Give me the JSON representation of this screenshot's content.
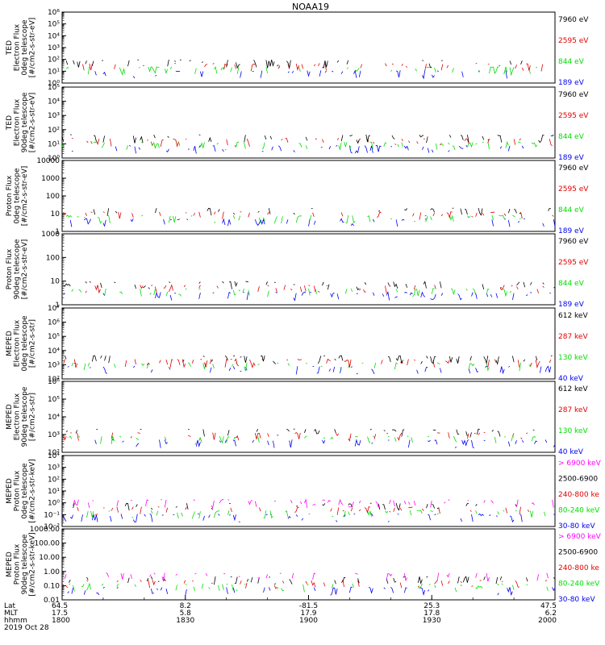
{
  "title": "NOAA19",
  "colors": {
    "black": "#000000",
    "red": "#e00000",
    "green": "#00dd00",
    "blue": "#0000ee",
    "magenta": "#ff00ff"
  },
  "chart_data": [
    {
      "type": "line",
      "ylabel": [
        "TED",
        "Electron Flux",
        "0deg telescope",
        "[#/cm2-s-str-eV]"
      ],
      "log": true,
      "yticks": [
        "10⁰",
        "10¹",
        "10²",
        "10³",
        "10⁴",
        "10⁵",
        "10⁶"
      ],
      "legend": [
        {
          "label": "7960 eV",
          "color": "black"
        },
        {
          "label": "2595 eV",
          "color": "red"
        },
        {
          "label": "844 eV",
          "color": "green"
        },
        {
          "label": "189 eV",
          "color": "blue"
        }
      ]
    },
    {
      "type": "line",
      "ylabel": [
        "TED",
        "Electron Flux",
        "90deg telescope",
        "[#/cm2-s-str-eV]"
      ],
      "log": true,
      "yticks": [
        "10⁰",
        "10¹",
        "10²",
        "10³",
        "10⁴",
        "10⁵"
      ],
      "legend": [
        {
          "label": "7960 eV",
          "color": "black"
        },
        {
          "label": "2595 eV",
          "color": "red"
        },
        {
          "label": "844 eV",
          "color": "green"
        },
        {
          "label": "189 eV",
          "color": "blue"
        }
      ]
    },
    {
      "type": "line",
      "ylabel": [
        "Proton Flux",
        "0deg telescope",
        "[#/cm2-s-str-eV]"
      ],
      "log": true,
      "yticks": [
        "1",
        "10",
        "100",
        "1000",
        "10000"
      ],
      "legend": [
        {
          "label": "7960 eV",
          "color": "black"
        },
        {
          "label": "2595 eV",
          "color": "red"
        },
        {
          "label": "844 eV",
          "color": "green"
        },
        {
          "label": "189 eV",
          "color": "blue"
        }
      ]
    },
    {
      "type": "line",
      "ylabel": [
        "Proton Flux",
        "90deg telescope",
        "[#/cm2-s-str-eV]"
      ],
      "log": true,
      "yticks": [
        "1",
        "10",
        "100",
        "1000"
      ],
      "legend": [
        {
          "label": "7960 eV",
          "color": "black"
        },
        {
          "label": "2595 eV",
          "color": "red"
        },
        {
          "label": "844 eV",
          "color": "green"
        },
        {
          "label": "189 eV",
          "color": "blue"
        }
      ]
    },
    {
      "type": "line",
      "ylabel": [
        "MEPED",
        "Electron Flux",
        "0deg telescope",
        "[#/cm2-s-str]"
      ],
      "log": true,
      "yticks": [
        "10²",
        "10³",
        "10⁴",
        "10⁵",
        "10⁶",
        "10⁷"
      ],
      "legend": [
        {
          "label": "612 keV",
          "color": "black"
        },
        {
          "label": "287 keV",
          "color": "red"
        },
        {
          "label": "130 keV",
          "color": "green"
        },
        {
          "label": "40 keV",
          "color": "blue"
        }
      ]
    },
    {
      "type": "line",
      "ylabel": [
        "MEPED",
        "Electron Flux",
        "90deg telescope",
        "[#/cm2-s-str]"
      ],
      "log": true,
      "yticks": [
        "10²",
        "10³",
        "10⁴",
        "10⁵",
        "10⁶"
      ],
      "legend": [
        {
          "label": "612 keV",
          "color": "black"
        },
        {
          "label": "287 keV",
          "color": "red"
        },
        {
          "label": "130 keV",
          "color": "green"
        },
        {
          "label": "40 keV",
          "color": "blue"
        }
      ]
    },
    {
      "type": "line",
      "ylabel": [
        "MEPED",
        "Proton Flux",
        "0deg telescope",
        "[#/cm2-s-str-keV]"
      ],
      "log": true,
      "yticks": [
        "10⁻²",
        "10⁻¹",
        "10⁰",
        "10¹",
        "10²",
        "10³",
        "10⁴"
      ],
      "legend": [
        {
          "label": "> 6900 keV",
          "color": "magenta"
        },
        {
          "label": "2500-6900",
          "color": "black"
        },
        {
          "label": "240-800 ke",
          "color": "red"
        },
        {
          "label": "80-240 keV",
          "color": "green"
        },
        {
          "label": "30-80 keV",
          "color": "blue"
        }
      ]
    },
    {
      "type": "line",
      "ylabel": [
        "MEPED",
        "Proton Flux",
        "90deg telescope",
        "[#/cm2-s-str-keV]"
      ],
      "log": true,
      "yticks": [
        "0.01",
        "0.10",
        "1.00",
        "10.00",
        "100.00",
        "1000.00"
      ],
      "legend": [
        {
          "label": "> 6900 keV",
          "color": "magenta"
        },
        {
          "label": "2500-6900",
          "color": "black"
        },
        {
          "label": "240-800 ke",
          "color": "red"
        },
        {
          "label": "80-240 keV",
          "color": "green"
        },
        {
          "label": "30-80 keV",
          "color": "blue"
        }
      ]
    }
  ],
  "xaxis": {
    "row_labels": [
      "Lat",
      "MLT",
      "hhmm"
    ],
    "columns": [
      {
        "lat": "64.5",
        "mlt": "17.5",
        "time": "1800"
      },
      {
        "lat": "8.2",
        "mlt": "5.8",
        "time": "1830"
      },
      {
        "lat": "-81.5",
        "mlt": "17.9",
        "time": "1900"
      },
      {
        "lat": "25.3",
        "mlt": "17.8",
        "time": "1930"
      },
      {
        "lat": "47.5",
        "mlt": "6.2",
        "time": "2000"
      }
    ],
    "date": "2019 Oct 28"
  }
}
